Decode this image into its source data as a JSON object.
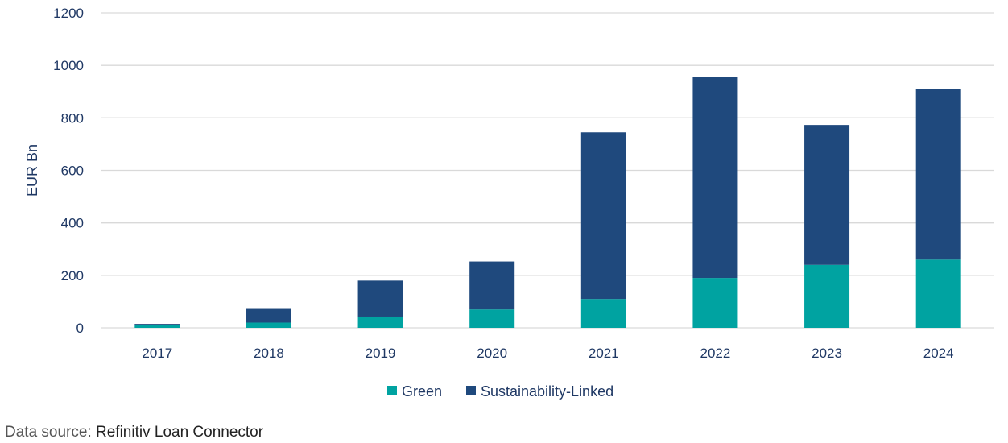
{
  "chart_data": {
    "type": "bar",
    "stacked": true,
    "categories": [
      "2017",
      "2018",
      "2019",
      "2020",
      "2021",
      "2022",
      "2023",
      "2024"
    ],
    "series": [
      {
        "name": "Green",
        "color": "#00a3a1",
        "values": [
          10,
          20,
          43,
          70,
          110,
          190,
          240,
          260
        ]
      },
      {
        "name": "Sustainability-Linked",
        "color": "#1f497d",
        "values": [
          5,
          52,
          137,
          183,
          635,
          765,
          533,
          650
        ]
      }
    ],
    "ylabel": "EUR Bn",
    "ylim": [
      0,
      1200
    ],
    "yticks": [
      0,
      200,
      400,
      600,
      800,
      1000,
      1200
    ],
    "grid": true,
    "legend_position": "bottom"
  },
  "footer": {
    "source_label": "Data source:",
    "source_value": "Refinitiv Loan Connector"
  }
}
